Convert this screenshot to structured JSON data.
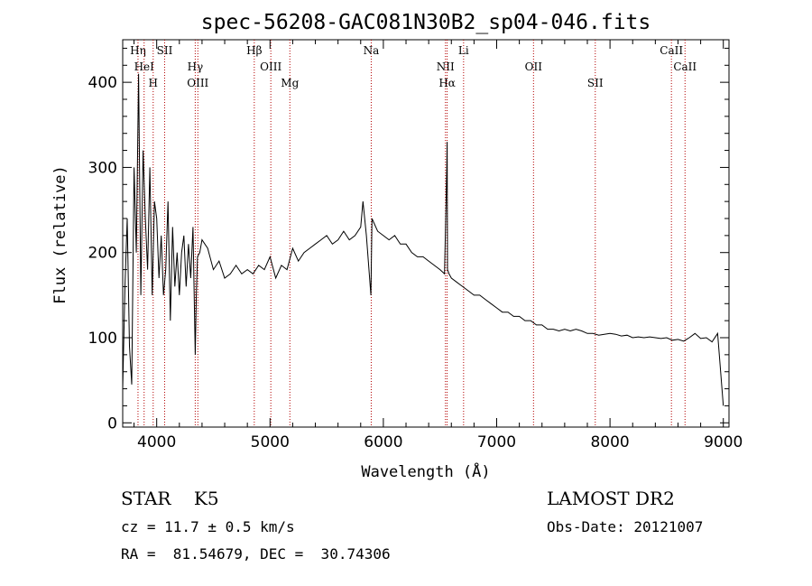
{
  "chart_data": {
    "type": "line",
    "title": "spec-56208-GAC081N30B2_sp04-046.fits",
    "xlabel": "Wavelength (Å)",
    "ylabel": "Flux (relative)",
    "xlim": [
      3700,
      9050
    ],
    "ylim": [
      -5,
      450
    ],
    "x_ticks": [
      4000,
      5000,
      6000,
      7000,
      8000,
      9000
    ],
    "y_ticks": [
      0,
      100,
      200,
      300,
      400
    ],
    "series": [
      {
        "x": [
          3700,
          3720,
          3740,
          3760,
          3780,
          3800,
          3820,
          3840,
          3860,
          3880,
          3900,
          3920,
          3940,
          3960,
          3980,
          4000,
          4020,
          4040,
          4060,
          4080,
          4100,
          4120,
          4140,
          4160,
          4180,
          4200,
          4220,
          4240,
          4260,
          4280,
          4300,
          4320,
          4340,
          4350,
          4360,
          4380,
          4400,
          4450,
          4500,
          4550,
          4600,
          4650,
          4700,
          4750,
          4800,
          4850,
          4900,
          4950,
          5000,
          5050,
          5100,
          5150,
          5200,
          5250,
          5300,
          5350,
          5400,
          5450,
          5500,
          5550,
          5600,
          5650,
          5700,
          5750,
          5800,
          5820,
          5850,
          5890,
          5900,
          5950,
          6000,
          6050,
          6100,
          6150,
          6200,
          6250,
          6300,
          6350,
          6400,
          6450,
          6500,
          6540,
          6560,
          6563,
          6566,
          6580,
          6600,
          6650,
          6700,
          6750,
          6800,
          6850,
          6900,
          6950,
          7000,
          7050,
          7100,
          7150,
          7200,
          7250,
          7300,
          7350,
          7400,
          7450,
          7500,
          7550,
          7600,
          7650,
          7700,
          7750,
          7800,
          7850,
          7900,
          7950,
          8000,
          8050,
          8100,
          8150,
          8200,
          8250,
          8300,
          8350,
          8400,
          8450,
          8500,
          8550,
          8600,
          8650,
          8700,
          8750,
          8800,
          8850,
          8900,
          8950,
          9000
        ],
        "y": [
          40,
          160,
          240,
          90,
          45,
          300,
          200,
          410,
          150,
          320,
          240,
          180,
          300,
          150,
          260,
          240,
          170,
          220,
          150,
          180,
          260,
          120,
          230,
          160,
          200,
          150,
          200,
          220,
          160,
          210,
          170,
          230,
          80,
          150,
          195,
          200,
          215,
          205,
          180,
          190,
          170,
          175,
          185,
          175,
          180,
          175,
          185,
          180,
          195,
          170,
          185,
          180,
          205,
          190,
          200,
          205,
          210,
          215,
          220,
          210,
          215,
          225,
          215,
          220,
          230,
          260,
          220,
          150,
          240,
          225,
          220,
          215,
          220,
          210,
          210,
          200,
          195,
          195,
          190,
          185,
          180,
          175,
          300,
          330,
          180,
          175,
          170,
          165,
          160,
          155,
          150,
          150,
          145,
          140,
          135,
          130,
          130,
          125,
          125,
          120,
          120,
          115,
          115,
          110,
          110,
          108,
          110,
          108,
          110,
          108,
          105,
          105,
          103,
          104,
          105,
          104,
          102,
          103,
          100,
          101,
          100,
          101,
          100,
          99,
          100,
          97,
          98,
          96,
          100,
          105,
          99,
          100,
          95,
          105,
          20
        ]
      }
    ],
    "emission_lines": [
      {
        "label": "Hη",
        "x": 3835
      },
      {
        "label": "HeI",
        "x": 3889
      },
      {
        "label": "H",
        "x": 3969
      },
      {
        "label": "SII",
        "x": 4070
      },
      {
        "label": "Hγ",
        "x": 4340
      },
      {
        "label": "OIII",
        "x": 4363
      },
      {
        "label": "Hβ",
        "x": 4861
      },
      {
        "label": "OIII",
        "x": 5007
      },
      {
        "label": "Mg",
        "x": 5175
      },
      {
        "label": "Na",
        "x": 5893
      },
      {
        "label": "NII",
        "x": 6548
      },
      {
        "label": "Hα",
        "x": 6563
      },
      {
        "label": "Li",
        "x": 6708
      },
      {
        "label": "OII",
        "x": 7325
      },
      {
        "label": "SII",
        "x": 7870
      },
      {
        "label": "CaII",
        "x": 8542
      },
      {
        "label": "CaII",
        "x": 8662
      }
    ]
  },
  "info": {
    "class": "STAR    K5",
    "survey": "LAMOST DR2",
    "cz": "cz = 11.7 ± 0.5 km/s",
    "obs_date": "Obs-Date: 20121007",
    "radec": "RA =  81.54679, DEC =  30.74306"
  },
  "colors": {
    "spectrum": "#000000",
    "line_marker": "#b30000",
    "background": "#ffffff"
  }
}
